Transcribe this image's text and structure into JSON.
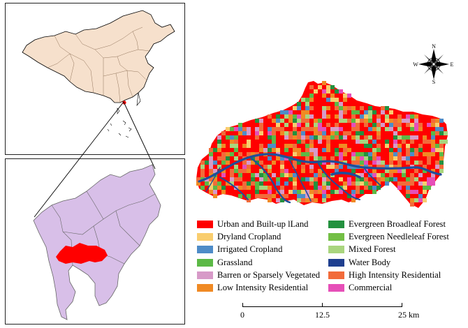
{
  "colors": {
    "province_fill": "#f6e0cc",
    "city_fill": "#d8bfe8",
    "highlight": "#ff0000",
    "river": "#1f4e9a"
  },
  "compass": {
    "n": "N",
    "s": "S",
    "e": "E",
    "w": "W"
  },
  "legend": {
    "left": [
      {
        "label": "Urban and Built-up lLand",
        "color": "#ff0000"
      },
      {
        "label": "Dryland Cropland",
        "color": "#f9cd6e"
      },
      {
        "label": "Irrigated Cropland",
        "color": "#4e8cc8"
      },
      {
        "label": "Grassland",
        "color": "#5cb946"
      },
      {
        "label": "Barren or Sparsely Vegetated",
        "color": "#d79ac8"
      },
      {
        "label": "Low Intensity Residential",
        "color": "#f08a24"
      }
    ],
    "right": [
      {
        "label": "Evergreen Broadleaf Forest",
        "color": "#23913f"
      },
      {
        "label": "Evergreen Needleleaf Forest",
        "color": "#73bf45"
      },
      {
        "label": "Mixed Forest",
        "color": "#a9d57e"
      },
      {
        "label": "Water Body",
        "color": "#1f3f8f"
      },
      {
        "label": "High Intensity Residential",
        "color": "#f26b3a"
      },
      {
        "label": "Commercial",
        "color": "#e64fb8"
      }
    ]
  },
  "scale_bar": {
    "tick_0": "0",
    "tick_mid": "12.5",
    "tick_end": "25 km"
  }
}
